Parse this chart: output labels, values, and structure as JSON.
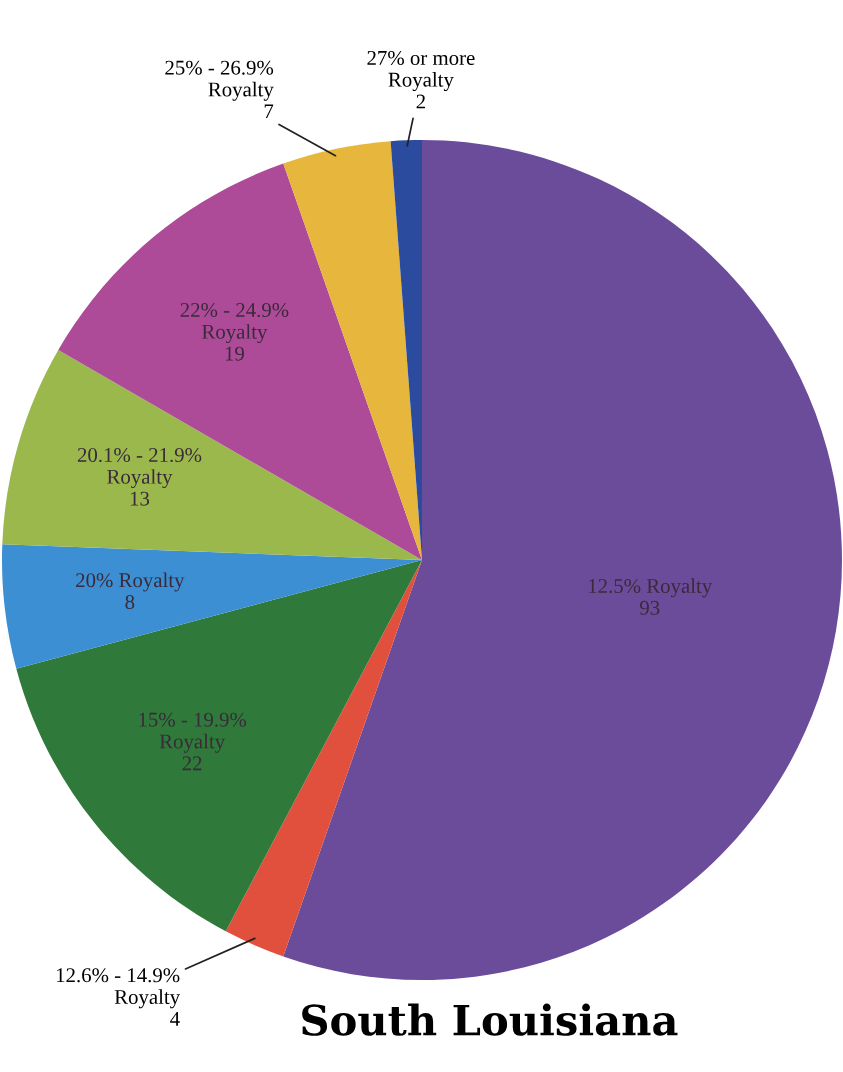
{
  "chart_data": {
    "type": "pie",
    "title": "South Louisiana",
    "categories": [
      "12.5% Royalty",
      "12.6% - 14.9%\nRoyalty",
      "15% - 19.9%\nRoyalty",
      "20% Royalty",
      "20.1% - 21.9%\nRoyalty",
      "22% - 24.9%\nRoyalty",
      "25% - 26.9%\nRoyalty",
      "27% or more\nRoyalty"
    ],
    "values": [
      93,
      4,
      22,
      8,
      13,
      19,
      7,
      2
    ],
    "colors": [
      "#6b4c9a",
      "#e0503c",
      "#2f7a3a",
      "#3c8fd2",
      "#9bb84c",
      "#ad4b98",
      "#e6b73c",
      "#2b4c9e"
    ],
    "data_labels": true
  }
}
